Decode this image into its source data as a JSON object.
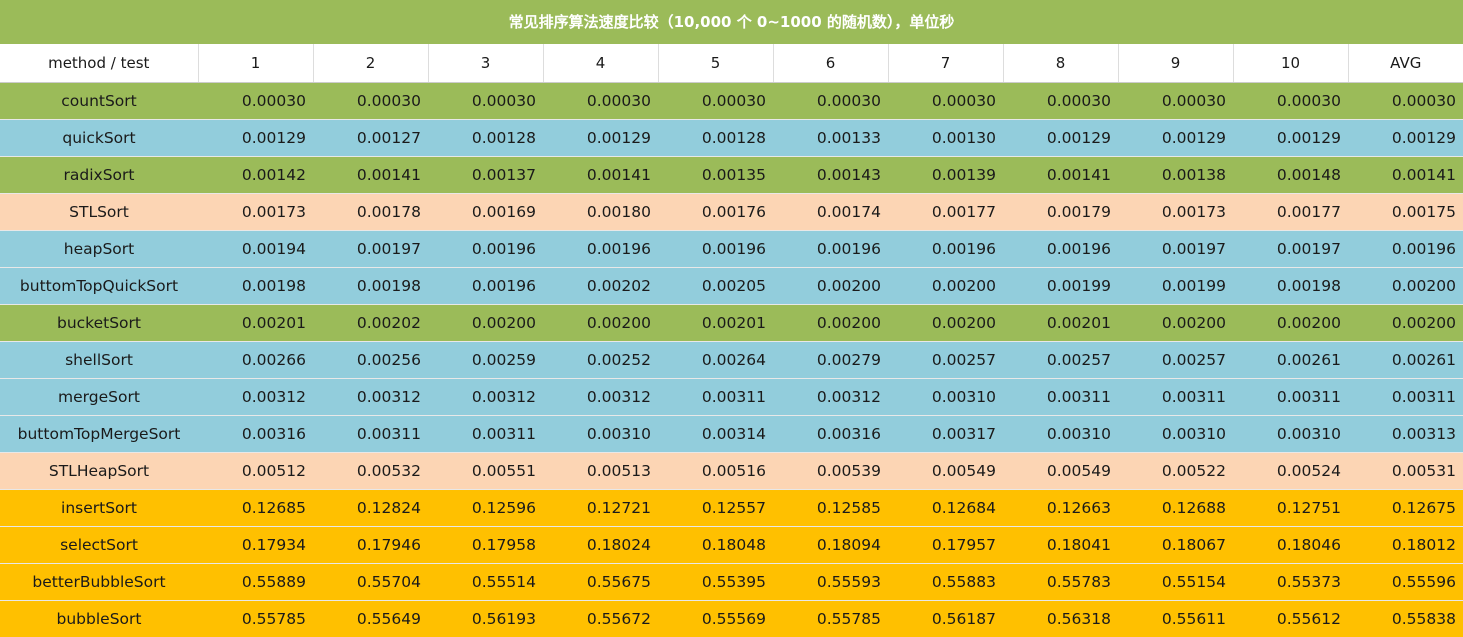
{
  "title": "常见排序算法速度比较（10,000 个 0~1000 的随机数），单位秒",
  "colors": {
    "title_bg": "#9bbb59",
    "green": "#9bbb59",
    "blue": "#92cddc",
    "peach": "#fcd5b4",
    "orange": "#ffc000"
  },
  "chart_data": {
    "type": "table",
    "columns": [
      "method / test",
      "1",
      "2",
      "3",
      "4",
      "5",
      "6",
      "7",
      "8",
      "9",
      "10",
      "AVG"
    ],
    "rows": [
      {
        "name": "countSort",
        "color": "green",
        "values": [
          "0.00030",
          "0.00030",
          "0.00030",
          "0.00030",
          "0.00030",
          "0.00030",
          "0.00030",
          "0.00030",
          "0.00030",
          "0.00030",
          "0.00030"
        ]
      },
      {
        "name": "quickSort",
        "color": "blue",
        "values": [
          "0.00129",
          "0.00127",
          "0.00128",
          "0.00129",
          "0.00128",
          "0.00133",
          "0.00130",
          "0.00129",
          "0.00129",
          "0.00129",
          "0.00129"
        ]
      },
      {
        "name": "radixSort",
        "color": "green",
        "values": [
          "0.00142",
          "0.00141",
          "0.00137",
          "0.00141",
          "0.00135",
          "0.00143",
          "0.00139",
          "0.00141",
          "0.00138",
          "0.00148",
          "0.00141"
        ]
      },
      {
        "name": "STLSort",
        "color": "peach",
        "values": [
          "0.00173",
          "0.00178",
          "0.00169",
          "0.00180",
          "0.00176",
          "0.00174",
          "0.00177",
          "0.00179",
          "0.00173",
          "0.00177",
          "0.00175"
        ]
      },
      {
        "name": "heapSort",
        "color": "blue",
        "values": [
          "0.00194",
          "0.00197",
          "0.00196",
          "0.00196",
          "0.00196",
          "0.00196",
          "0.00196",
          "0.00196",
          "0.00197",
          "0.00197",
          "0.00196"
        ]
      },
      {
        "name": "buttomTopQuickSort",
        "color": "blue",
        "values": [
          "0.00198",
          "0.00198",
          "0.00196",
          "0.00202",
          "0.00205",
          "0.00200",
          "0.00200",
          "0.00199",
          "0.00199",
          "0.00198",
          "0.00200"
        ]
      },
      {
        "name": "bucketSort",
        "color": "green",
        "values": [
          "0.00201",
          "0.00202",
          "0.00200",
          "0.00200",
          "0.00201",
          "0.00200",
          "0.00200",
          "0.00201",
          "0.00200",
          "0.00200",
          "0.00200"
        ]
      },
      {
        "name": "shellSort",
        "color": "blue",
        "values": [
          "0.00266",
          "0.00256",
          "0.00259",
          "0.00252",
          "0.00264",
          "0.00279",
          "0.00257",
          "0.00257",
          "0.00257",
          "0.00261",
          "0.00261"
        ]
      },
      {
        "name": "mergeSort",
        "color": "blue",
        "values": [
          "0.00312",
          "0.00312",
          "0.00312",
          "0.00312",
          "0.00311",
          "0.00312",
          "0.00310",
          "0.00311",
          "0.00311",
          "0.00311",
          "0.00311"
        ]
      },
      {
        "name": "buttomTopMergeSort",
        "color": "blue",
        "values": [
          "0.00316",
          "0.00311",
          "0.00311",
          "0.00310",
          "0.00314",
          "0.00316",
          "0.00317",
          "0.00310",
          "0.00310",
          "0.00310",
          "0.00313"
        ]
      },
      {
        "name": "STLHeapSort",
        "color": "peach",
        "values": [
          "0.00512",
          "0.00532",
          "0.00551",
          "0.00513",
          "0.00516",
          "0.00539",
          "0.00549",
          "0.00549",
          "0.00522",
          "0.00524",
          "0.00531"
        ]
      },
      {
        "name": "insertSort",
        "color": "orange",
        "values": [
          "0.12685",
          "0.12824",
          "0.12596",
          "0.12721",
          "0.12557",
          "0.12585",
          "0.12684",
          "0.12663",
          "0.12688",
          "0.12751",
          "0.12675"
        ]
      },
      {
        "name": "selectSort",
        "color": "orange",
        "values": [
          "0.17934",
          "0.17946",
          "0.17958",
          "0.18024",
          "0.18048",
          "0.18094",
          "0.17957",
          "0.18041",
          "0.18067",
          "0.18046",
          "0.18012"
        ]
      },
      {
        "name": "betterBubbleSort",
        "color": "orange",
        "values": [
          "0.55889",
          "0.55704",
          "0.55514",
          "0.55675",
          "0.55395",
          "0.55593",
          "0.55883",
          "0.55783",
          "0.55154",
          "0.55373",
          "0.55596"
        ]
      },
      {
        "name": "bubbleSort",
        "color": "orange",
        "values": [
          "0.55785",
          "0.55649",
          "0.56193",
          "0.55672",
          "0.55569",
          "0.55785",
          "0.56187",
          "0.56318",
          "0.55611",
          "0.55612",
          "0.55838"
        ]
      }
    ]
  }
}
